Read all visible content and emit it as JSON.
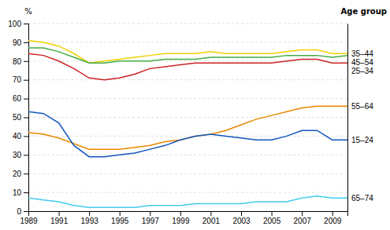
{
  "chart_data": {
    "type": "line",
    "x": [
      1989,
      1990,
      1991,
      1992,
      1993,
      1994,
      1995,
      1996,
      1997,
      1998,
      1999,
      2000,
      2001,
      2002,
      2003,
      2004,
      2005,
      2006,
      2007,
      2008,
      2009,
      2010
    ],
    "series": [
      {
        "name": "35–44",
        "color": "#f0d000",
        "values": [
          91,
          90,
          88,
          84,
          79,
          80,
          81,
          82,
          83,
          84,
          84,
          84,
          85,
          84,
          84,
          84,
          84,
          85,
          86,
          86,
          84,
          84
        ]
      },
      {
        "name": "45–54",
        "color": "#44aa44",
        "values": [
          87,
          87,
          85,
          82,
          79,
          79,
          80,
          80,
          80,
          81,
          81,
          81,
          82,
          82,
          82,
          82,
          82,
          83,
          83,
          83,
          82,
          83
        ]
      },
      {
        "name": "25–34",
        "color": "#cc2222",
        "values": [
          84,
          83,
          80,
          76,
          71,
          70,
          71,
          73,
          76,
          77,
          78,
          79,
          79,
          79,
          79,
          79,
          79,
          80,
          81,
          81,
          79,
          79
        ]
      },
      {
        "name": "55–64",
        "color": "#e88800",
        "values": [
          42,
          41,
          39,
          36,
          33,
          33,
          33,
          34,
          35,
          37,
          38,
          40,
          41,
          43,
          46,
          49,
          51,
          53,
          55,
          56,
          56,
          56
        ]
      },
      {
        "name": "15–24",
        "color": "#1155bb",
        "values": [
          53,
          52,
          47,
          35,
          29,
          29,
          30,
          31,
          33,
          35,
          38,
          40,
          41,
          40,
          39,
          38,
          38,
          40,
          43,
          43,
          38,
          38
        ]
      },
      {
        "name": "65–74",
        "color": "#44ccee",
        "values": [
          7,
          6,
          5,
          3,
          2,
          2,
          2,
          2,
          3,
          3,
          3,
          4,
          4,
          4,
          4,
          5,
          5,
          5,
          7,
          8,
          7,
          7
        ]
      }
    ],
    "xlim": [
      1989,
      2010
    ],
    "xticks": [
      1989,
      1991,
      1993,
      1995,
      1997,
      1999,
      2001,
      2003,
      2005,
      2007,
      2009
    ],
    "ylim": [
      0,
      100
    ],
    "yticks": [
      0,
      10,
      20,
      30,
      40,
      50,
      60,
      70,
      80,
      90,
      100
    ],
    "ylabel": "%",
    "y2lim": [
      0,
      100
    ],
    "y2ticks": [
      {
        "value": 84,
        "label": "35–44"
      },
      {
        "value": 83,
        "label": "45–54"
      },
      {
        "value": 79,
        "label": "25–34"
      },
      {
        "value": 56,
        "label": "55–64"
      },
      {
        "value": 38,
        "label": "15–24"
      },
      {
        "value": 7,
        "label": "65–74"
      }
    ],
    "y2label": "Age group",
    "grid": "y"
  }
}
